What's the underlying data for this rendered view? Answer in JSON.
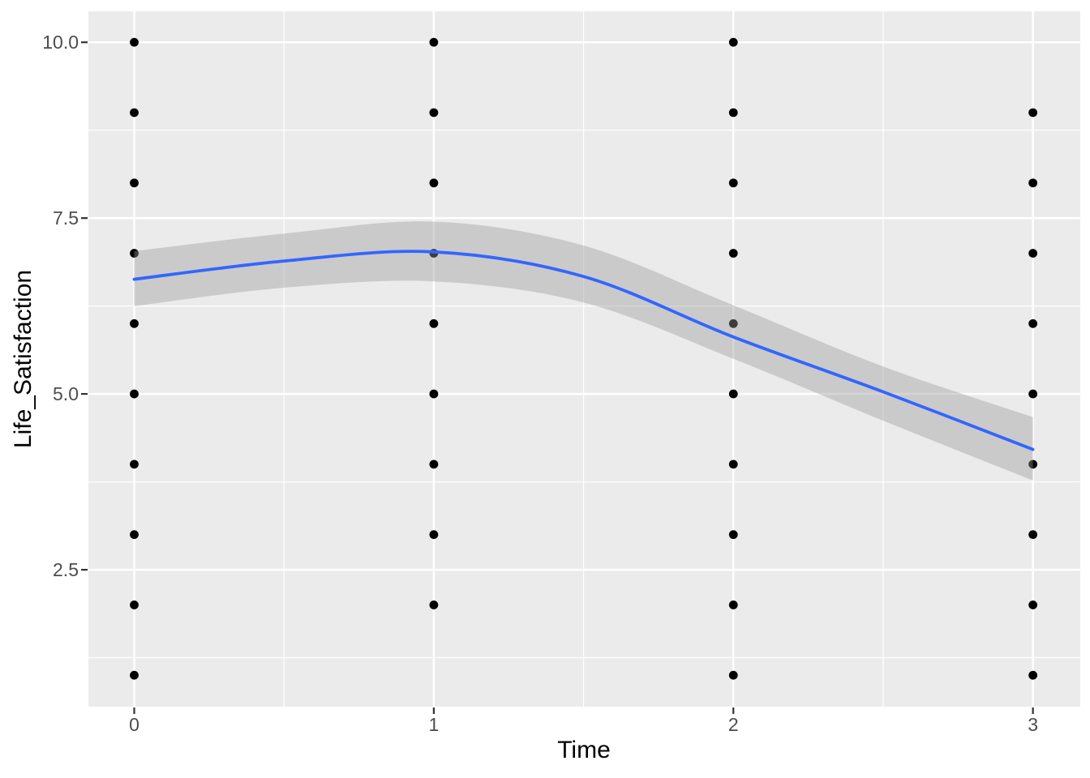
{
  "figure": {
    "background": "#FFFFFF",
    "panel_background": "#EBEBEB",
    "grid_color": "#FFFFFF",
    "tick_mark_color": "#333333",
    "tick_label_color": "#4D4D4D",
    "axis_title_color": "#000000",
    "point_color": "#000000",
    "smooth_line_color": "#3366FF",
    "band_fill": "#999999",
    "band_opacity": 0.4
  },
  "chart_data": {
    "type": "scatter",
    "title": "",
    "xlabel": "Time",
    "ylabel": "Life_Satisfaction",
    "xlim": [
      -0.153,
      3.158
    ],
    "ylim": [
      0.553,
      10.44
    ],
    "grid": "on",
    "legend": "none",
    "x_ticks": [
      0,
      1,
      2,
      3
    ],
    "x_tick_labels": [
      "0",
      "1",
      "2",
      "3"
    ],
    "y_ticks": [
      2.5,
      5.0,
      7.5,
      10.0
    ],
    "y_tick_labels": [
      "2.5",
      "5.0",
      "7.5",
      "10.0"
    ],
    "x_minor_ticks": [
      0.5,
      1.5,
      2.5
    ],
    "y_minor_ticks": [
      1.25,
      3.75,
      6.25,
      8.75
    ],
    "points": [
      [
        0,
        1
      ],
      [
        0,
        2
      ],
      [
        0,
        3
      ],
      [
        0,
        4
      ],
      [
        0,
        5
      ],
      [
        0,
        6
      ],
      [
        0,
        7
      ],
      [
        0,
        8
      ],
      [
        0,
        9
      ],
      [
        0,
        10
      ],
      [
        1,
        2
      ],
      [
        1,
        3
      ],
      [
        1,
        4
      ],
      [
        1,
        5
      ],
      [
        1,
        6
      ],
      [
        1,
        7
      ],
      [
        1,
        8
      ],
      [
        1,
        9
      ],
      [
        1,
        10
      ],
      [
        2,
        1
      ],
      [
        2,
        2
      ],
      [
        2,
        3
      ],
      [
        2,
        4
      ],
      [
        2,
        5
      ],
      [
        2,
        6
      ],
      [
        2,
        7
      ],
      [
        2,
        8
      ],
      [
        2,
        9
      ],
      [
        2,
        10
      ],
      [
        3,
        1
      ],
      [
        3,
        2
      ],
      [
        3,
        3
      ],
      [
        3,
        4
      ],
      [
        3,
        5
      ],
      [
        3,
        6
      ],
      [
        3,
        7
      ],
      [
        3,
        8
      ],
      [
        3,
        9
      ]
    ],
    "smooth": {
      "method": "loess",
      "x": [
        0,
        0.5,
        1.0,
        1.5,
        2.0,
        2.5,
        3.0
      ],
      "y": [
        6.63,
        6.89,
        7.02,
        6.67,
        5.81,
        5.03,
        4.21
      ],
      "ci_upper": [
        7.03,
        7.28,
        7.45,
        7.11,
        6.26,
        5.39,
        4.67
      ],
      "ci_lower": [
        6.25,
        6.51,
        6.6,
        6.3,
        5.5,
        4.62,
        3.77
      ]
    }
  }
}
